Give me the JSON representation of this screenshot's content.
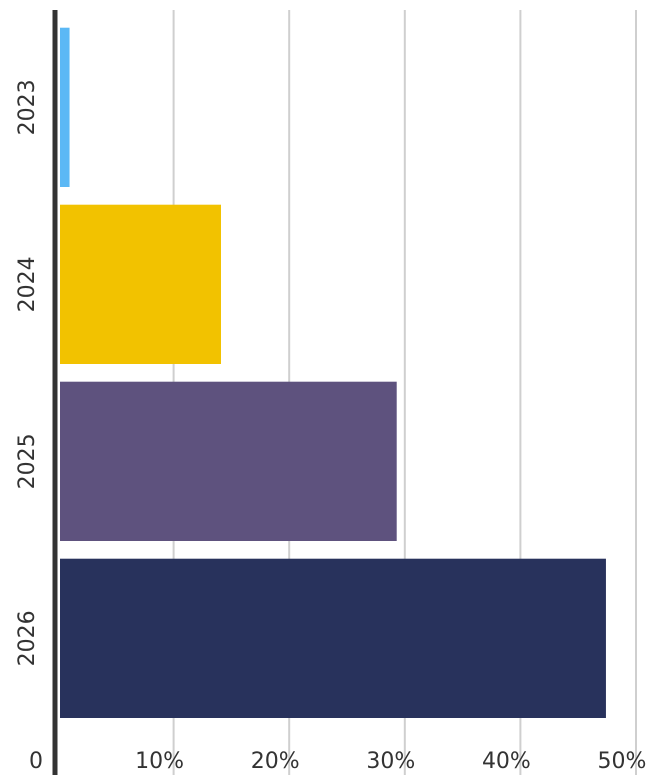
{
  "chart_data": {
    "type": "bar",
    "orientation": "horizontal",
    "categories": [
      "2023",
      "2024",
      "2025",
      "2026"
    ],
    "values": [
      1,
      14.1,
      29.3,
      47.4
    ],
    "colors": [
      "#5BB8F5",
      "#F2C200",
      "#5E527E",
      "#28325C"
    ],
    "xlim": [
      0,
      50
    ],
    "xticks": [
      0,
      10,
      20,
      30,
      40,
      50
    ],
    "xtick_labels": [
      "0",
      "10%",
      "20%",
      "30%",
      "40%",
      "50%"
    ],
    "title": "",
    "xlabel": "",
    "ylabel": "",
    "grid": "vertical",
    "legend": "none"
  }
}
